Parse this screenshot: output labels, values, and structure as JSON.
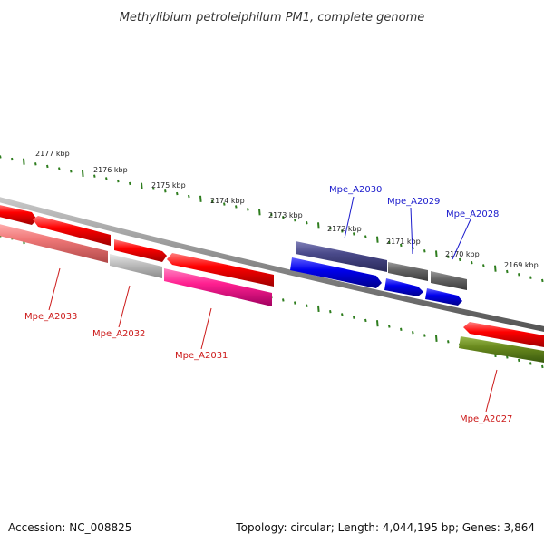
{
  "title": "Methylibium petroleiphilum PM1, complete genome",
  "footer": {
    "accession": "Accession: NC_008825",
    "summary": "Topology: circular; Length: 4,044,195 bp; Genes: 3,864"
  },
  "ticks": [
    {
      "label": "2177 kbp",
      "kbp": 2177
    },
    {
      "label": "2176 kbp",
      "kbp": 2176
    },
    {
      "label": "2175 kbp",
      "kbp": 2175
    },
    {
      "label": "2174 kbp",
      "kbp": 2174
    },
    {
      "label": "2173 kbp",
      "kbp": 2173
    },
    {
      "label": "2172 kbp",
      "kbp": 2172
    },
    {
      "label": "2171 kbp",
      "kbp": 2171
    },
    {
      "label": "2170 kbp",
      "kbp": 2170
    },
    {
      "label": "2169 kbp",
      "kbp": 2169
    }
  ],
  "gene_labels": [
    {
      "name": "Mpe_A2030",
      "strand": "forward",
      "color": "#1a1acc"
    },
    {
      "name": "Mpe_A2029",
      "strand": "forward",
      "color": "#1a1acc"
    },
    {
      "name": "Mpe_A2028",
      "strand": "forward",
      "color": "#1a1acc"
    },
    {
      "name": "Mpe_A2033",
      "strand": "reverse",
      "color": "#cc1a1a"
    },
    {
      "name": "Mpe_A2032",
      "strand": "reverse",
      "color": "#cc1a1a"
    },
    {
      "name": "Mpe_A2031",
      "strand": "reverse",
      "color": "#cc1a1a"
    },
    {
      "name": "Mpe_A2027",
      "strand": "reverse",
      "color": "#cc1a1a"
    }
  ],
  "colors": {
    "backbone": "#888888",
    "tick_mark": "#2e7d1e",
    "cds_red": "#ff0000",
    "cds_blue": "#0000ee",
    "cds_purple": "#4a4a8a",
    "cds_grey": "#666666",
    "cds_pink": "#ff2090",
    "cds_salmon": "#f07878",
    "cds_lightgrey": "#c0c0c0",
    "cds_olive": "#6a8a1e"
  }
}
